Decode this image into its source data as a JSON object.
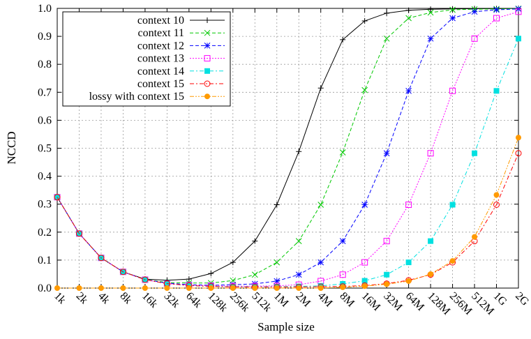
{
  "chart_data": {
    "type": "line",
    "title": "",
    "xlabel": "Sample size",
    "ylabel": "NCCD",
    "categories": [
      "1k",
      "2k",
      "4k",
      "8k",
      "16k",
      "32k",
      "64k",
      "128k",
      "256k",
      "512k",
      "1M",
      "2M",
      "4M",
      "8M",
      "16M",
      "32M",
      "64M",
      "128M",
      "256M",
      "512M",
      "1G",
      "2G"
    ],
    "ylim": [
      0,
      1.0
    ],
    "yticks": [
      "0.0",
      "0.1",
      "0.2",
      "0.3",
      "0.4",
      "0.5",
      "0.6",
      "0.7",
      "0.8",
      "0.9",
      "1.0"
    ],
    "grid": true,
    "legend_position": "top-left",
    "series": [
      {
        "name": "context 10",
        "color": "#000000",
        "marker": "plus",
        "dash": "solid",
        "values": [
          0.325,
          0.195,
          0.108,
          0.058,
          0.032,
          0.028,
          0.032,
          0.052,
          0.092,
          0.168,
          0.298,
          0.488,
          0.715,
          0.888,
          0.955,
          0.983,
          0.993,
          0.997,
          0.998,
          0.999,
          0.999,
          1.0
        ]
      },
      {
        "name": "context 11",
        "color": "#00c800",
        "marker": "x",
        "dash": "dash",
        "values": [
          0.325,
          0.195,
          0.108,
          0.058,
          0.03,
          0.02,
          0.018,
          0.018,
          0.027,
          0.048,
          0.092,
          0.168,
          0.298,
          0.485,
          0.708,
          0.892,
          0.965,
          0.985,
          0.995,
          0.997,
          0.998,
          0.999
        ]
      },
      {
        "name": "context 12",
        "color": "#0000ff",
        "marker": "star",
        "dash": "dash",
        "values": [
          0.325,
          0.195,
          0.108,
          0.058,
          0.03,
          0.018,
          0.012,
          0.01,
          0.012,
          0.015,
          0.025,
          0.048,
          0.092,
          0.168,
          0.298,
          0.482,
          0.705,
          0.892,
          0.965,
          0.988,
          0.995,
          0.998
        ]
      },
      {
        "name": "context 13",
        "color": "#ff00ff",
        "marker": "square",
        "dash": "dot",
        "values": [
          0.325,
          0.195,
          0.108,
          0.058,
          0.03,
          0.016,
          0.01,
          0.008,
          0.007,
          0.007,
          0.008,
          0.012,
          0.025,
          0.048,
          0.092,
          0.168,
          0.298,
          0.482,
          0.705,
          0.892,
          0.965,
          0.988
        ]
      },
      {
        "name": "context 14",
        "color": "#00e0e0",
        "marker": "filled-square",
        "dash": "dashdot",
        "values": [
          0.325,
          0.195,
          0.108,
          0.058,
          0.03,
          0.016,
          0.009,
          0.006,
          0.005,
          0.005,
          0.005,
          0.006,
          0.008,
          0.015,
          0.026,
          0.048,
          0.092,
          0.168,
          0.298,
          0.482,
          0.705,
          0.892
        ]
      },
      {
        "name": "context 15",
        "color": "#ff0000",
        "marker": "circle",
        "dash": "dashdot",
        "values": [
          0.325,
          0.195,
          0.108,
          0.058,
          0.03,
          0.016,
          0.009,
          0.006,
          0.004,
          0.004,
          0.004,
          0.004,
          0.005,
          0.006,
          0.009,
          0.016,
          0.028,
          0.048,
          0.092,
          0.168,
          0.298,
          0.482
        ]
      },
      {
        "name": "lossy with context 15",
        "color": "#ff9a00",
        "marker": "filled-circle",
        "dash": "dashdotdot",
        "values": [
          0.0,
          0.0,
          0.0,
          0.0,
          0.0,
          0.0,
          0.0,
          0.0,
          0.0,
          0.0,
          0.0,
          0.0,
          0.0,
          0.003,
          0.007,
          0.014,
          0.025,
          0.05,
          0.097,
          0.183,
          0.333,
          0.538
        ]
      }
    ]
  }
}
